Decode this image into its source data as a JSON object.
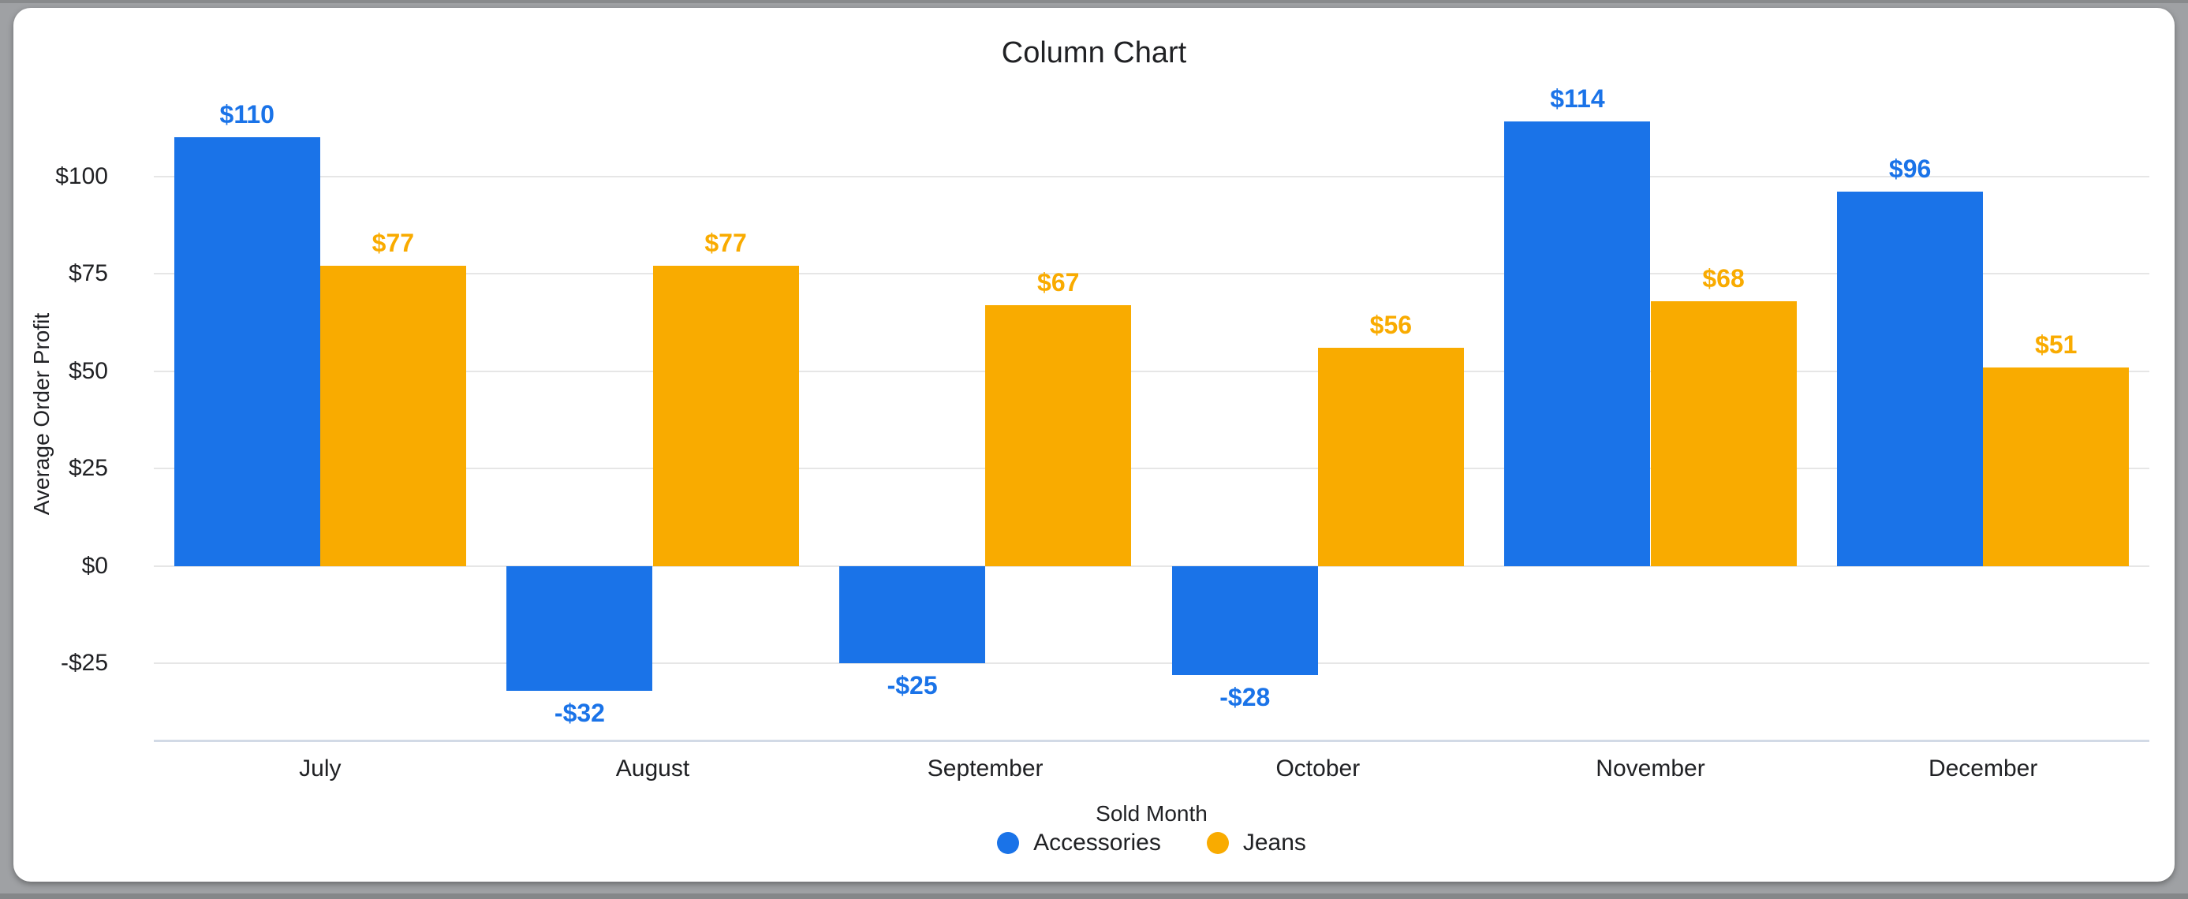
{
  "chart_data": {
    "type": "bar",
    "title": "Column Chart",
    "xlabel": "Sold Month",
    "ylabel": "Average Order Profit",
    "categories": [
      "July",
      "August",
      "September",
      "October",
      "November",
      "December"
    ],
    "series": [
      {
        "name": "Accessories",
        "color": "#1a73e8",
        "values": [
          110,
          -32,
          -25,
          -28,
          114,
          96
        ],
        "labels": [
          "$110",
          "-$32",
          "-$25",
          "-$28",
          "$114",
          "$96"
        ]
      },
      {
        "name": "Jeans",
        "color": "#f9ab00",
        "values": [
          77,
          77,
          67,
          56,
          68,
          51
        ],
        "labels": [
          "$77",
          "$77",
          "$67",
          "$56",
          "$68",
          "$51"
        ]
      }
    ],
    "y_ticks": [
      {
        "value": 100,
        "label": "$100"
      },
      {
        "value": 75,
        "label": "$75"
      },
      {
        "value": 50,
        "label": "$50"
      },
      {
        "value": 25,
        "label": "$25"
      },
      {
        "value": 0,
        "label": "$0"
      },
      {
        "value": -25,
        "label": "-$25"
      }
    ],
    "ylim": [
      -45,
      123
    ],
    "grid": "horizontal",
    "legend_position": "bottom"
  },
  "colors": {
    "accessories": "#1a73e8",
    "jeans": "#f9ab00",
    "gridline": "#e6e6e6",
    "axis_baseline": "#d2dae6",
    "text": "#202124",
    "card_background": "#ffffff",
    "desktop_background": "#9fa1a4"
  }
}
